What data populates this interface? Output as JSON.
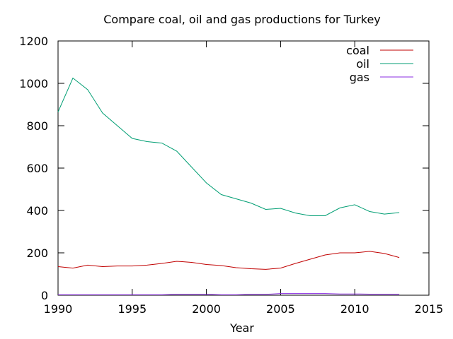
{
  "chart_data": {
    "type": "line",
    "title": "Compare coal, oil and gas productions for Turkey",
    "xlabel": "Year",
    "ylabel": "",
    "xlim": [
      1990,
      2015
    ],
    "ylim": [
      0,
      1200
    ],
    "xticks": [
      1990,
      1995,
      2000,
      2005,
      2010,
      2015
    ],
    "yticks": [
      0,
      200,
      400,
      600,
      800,
      1000,
      1200
    ],
    "grid": false,
    "legend_position": "top-right",
    "x": [
      1990,
      1991,
      1992,
      1993,
      1994,
      1995,
      1996,
      1997,
      1998,
      1999,
      2000,
      2001,
      2002,
      2003,
      2004,
      2005,
      2006,
      2007,
      2008,
      2009,
      2010,
      2011,
      2012,
      2013
    ],
    "series": [
      {
        "name": "coal",
        "color": "#c00000",
        "values": [
          135,
          128,
          142,
          135,
          138,
          138,
          142,
          150,
          160,
          155,
          145,
          140,
          130,
          125,
          122,
          128,
          150,
          170,
          190,
          200,
          200,
          207,
          197,
          178
        ]
      },
      {
        "name": "oil",
        "color": "#009e73",
        "values": [
          865,
          1025,
          970,
          860,
          800,
          740,
          725,
          718,
          680,
          605,
          530,
          475,
          455,
          435,
          405,
          410,
          388,
          375,
          375,
          412,
          427,
          395,
          383,
          390
        ]
      },
      {
        "name": "gas",
        "color": "#8a2be2",
        "values": [
          2,
          2,
          2,
          2,
          2,
          2,
          2,
          2,
          4,
          4,
          4,
          2,
          2,
          4,
          4,
          8,
          8,
          8,
          8,
          6,
          6,
          5,
          5,
          5
        ]
      }
    ]
  }
}
